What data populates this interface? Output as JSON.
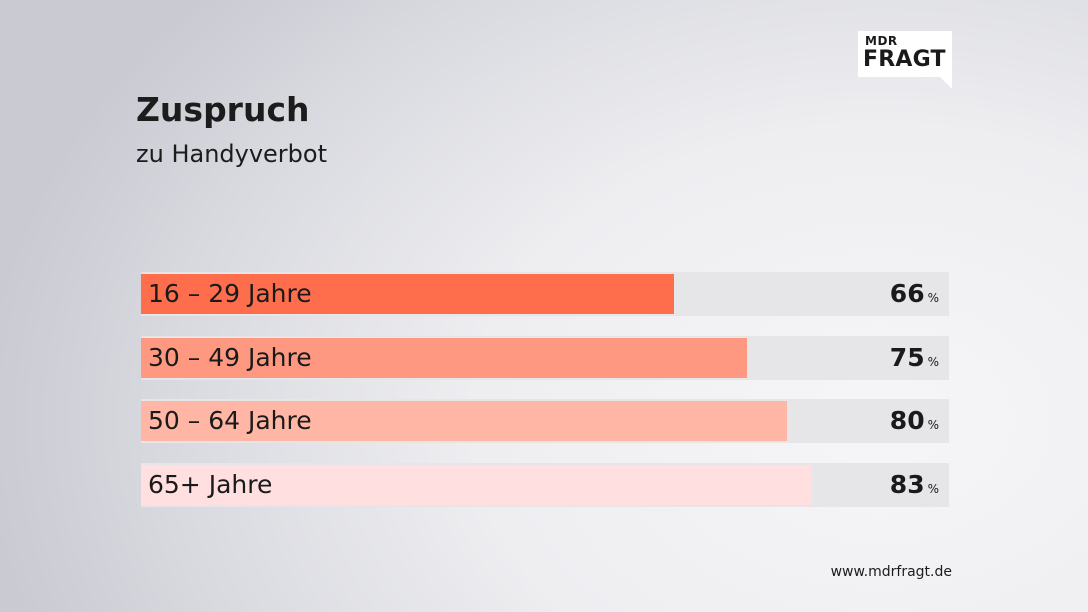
{
  "brand": {
    "logo_top": "MDR",
    "logo_bottom": "FRAGT"
  },
  "source_url": "www.mdrfragt.de",
  "chart_data": {
    "type": "bar",
    "orientation": "horizontal",
    "title": "Zuspruch",
    "subtitle": "zu Handyverbot",
    "unit": "%",
    "xlim": [
      0,
      100
    ],
    "categories": [
      "16 – 29 Jahre",
      "30 – 49 Jahre",
      "50 – 64 Jahre",
      "65+ Jahre"
    ],
    "values": [
      66,
      75,
      80,
      83
    ],
    "bar_colors": [
      "#ff6e4c",
      "#ff9880",
      "#ffb6a5",
      "#ffdfe0"
    ],
    "track_color": "#e6e6e9"
  }
}
